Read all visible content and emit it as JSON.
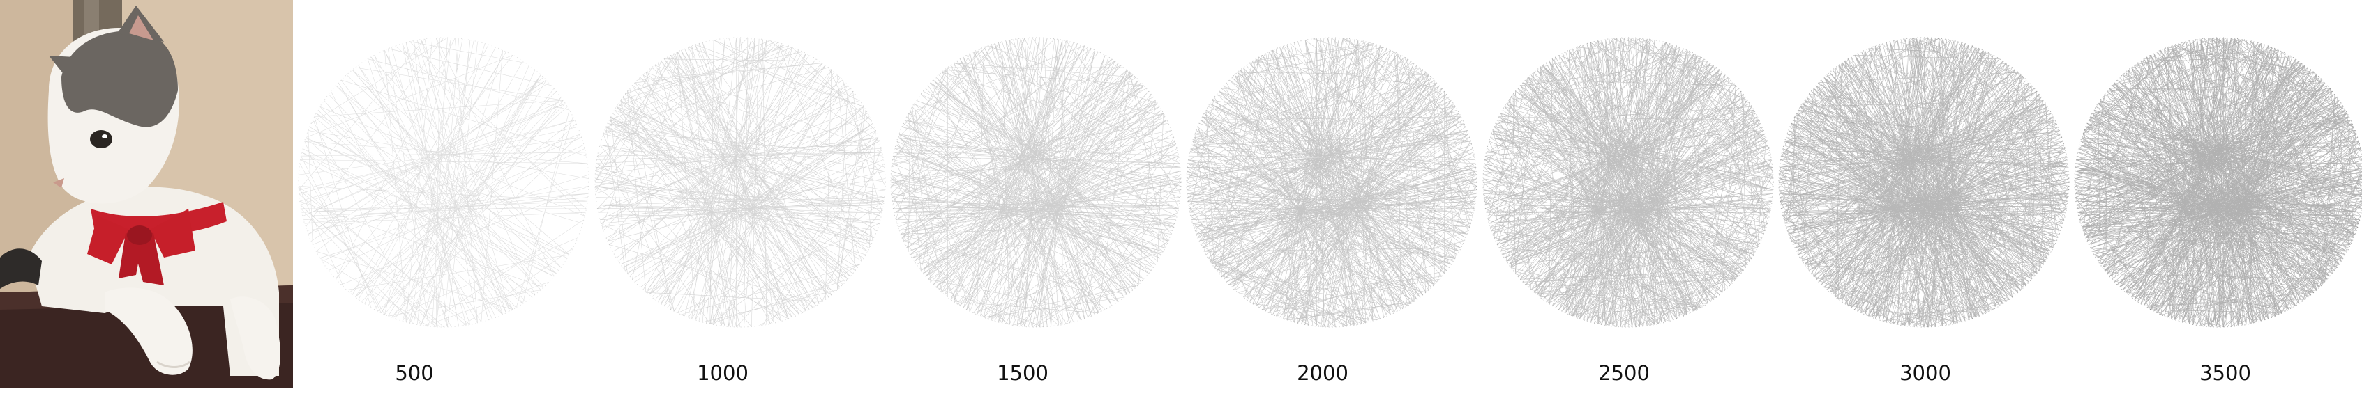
{
  "photo": {
    "subject": "cat-with-red-bow",
    "colors": {
      "wall": "#d6c1a7",
      "curtain": "#6f6457",
      "fur_white": "#f4f1ec",
      "fur_gray": "#6b6661",
      "bow": "#c8202c",
      "cushion": "#3a2421"
    }
  },
  "renderings": [
    {
      "label": "500"
    },
    {
      "label": "1000"
    },
    {
      "label": "1500"
    },
    {
      "label": "2000"
    },
    {
      "label": "2500"
    },
    {
      "label": "3000"
    },
    {
      "label": "3500"
    }
  ],
  "thread_color": "#2b2b2b"
}
